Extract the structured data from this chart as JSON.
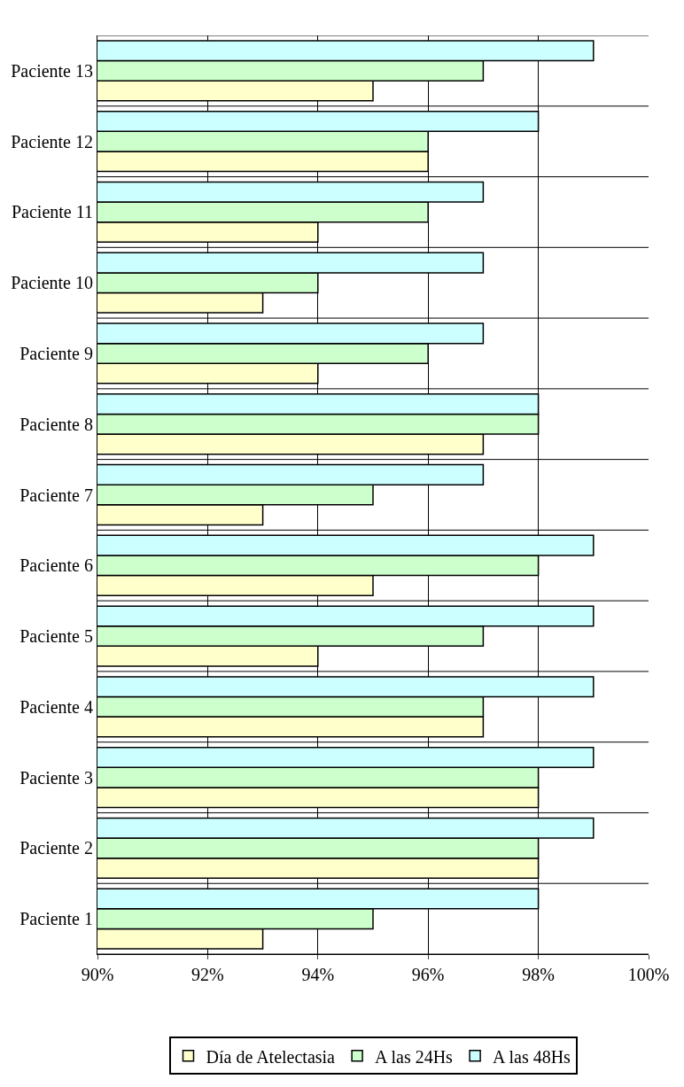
{
  "chart_data": {
    "type": "bar",
    "orientation": "horizontal",
    "categories": [
      "Paciente 13",
      "Paciente 12",
      "Paciente 11",
      "Paciente 10",
      "Paciente 9",
      "Paciente 8",
      "Paciente 7",
      "Paciente 6",
      "Paciente 5",
      "Paciente 4",
      "Paciente 3",
      "Paciente 2",
      "Paciente 1"
    ],
    "series": [
      {
        "name": "Día de Atelectasia",
        "color": "#ffffcc",
        "values": [
          95,
          96,
          94,
          93,
          94,
          97,
          93,
          95,
          94,
          97,
          98,
          98,
          93
        ]
      },
      {
        "name": "A las 24Hs",
        "color": "#ccffcc",
        "values": [
          97,
          96,
          96,
          94,
          96,
          98,
          95,
          98,
          97,
          97,
          98,
          98,
          95
        ]
      },
      {
        "name": "A las 48Hs",
        "color": "#ccffff",
        "values": [
          99,
          98,
          97,
          97,
          97,
          98,
          97,
          99,
          99,
          99,
          99,
          99,
          98
        ]
      }
    ],
    "xlim": [
      90,
      100
    ],
    "xticks": [
      {
        "value": 90,
        "label": "90%"
      },
      {
        "value": 92,
        "label": "92%"
      },
      {
        "value": 94,
        "label": "94%"
      },
      {
        "value": 96,
        "label": "96%"
      },
      {
        "value": 98,
        "label": "98%"
      },
      {
        "value": 100,
        "label": "100%"
      }
    ],
    "grid": true,
    "legend": "bottom"
  }
}
